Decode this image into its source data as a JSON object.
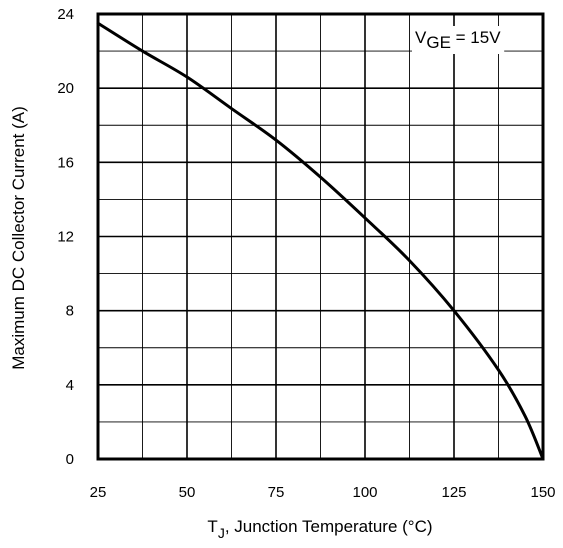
{
  "chart_data": {
    "type": "line",
    "xlabel_main": "T",
    "xlabel_sub": "J",
    "xlabel_rest": ", Junction Temperature (°C)",
    "ylabel": "Maximum DC Collector Current (A)",
    "xlim": [
      25,
      150
    ],
    "ylim": [
      0,
      24
    ],
    "x_ticks": [
      25,
      50,
      75,
      100,
      125,
      150
    ],
    "y_ticks": [
      0,
      4,
      8,
      12,
      16,
      20,
      24
    ],
    "x_minor_step": 12.5,
    "y_minor_step": 2,
    "grid": true,
    "annotation": {
      "main": "V",
      "sub": "GE",
      "rest": " = 15V"
    },
    "series": [
      {
        "x": [
          25,
          37.5,
          50,
          62.5,
          75,
          87.5,
          100,
          112.5,
          125,
          137.5,
          145,
          150
        ],
        "y": [
          23.5,
          22.0,
          20.6,
          18.9,
          17.2,
          15.2,
          13.0,
          10.7,
          8.0,
          4.8,
          2.3,
          0
        ]
      }
    ]
  }
}
